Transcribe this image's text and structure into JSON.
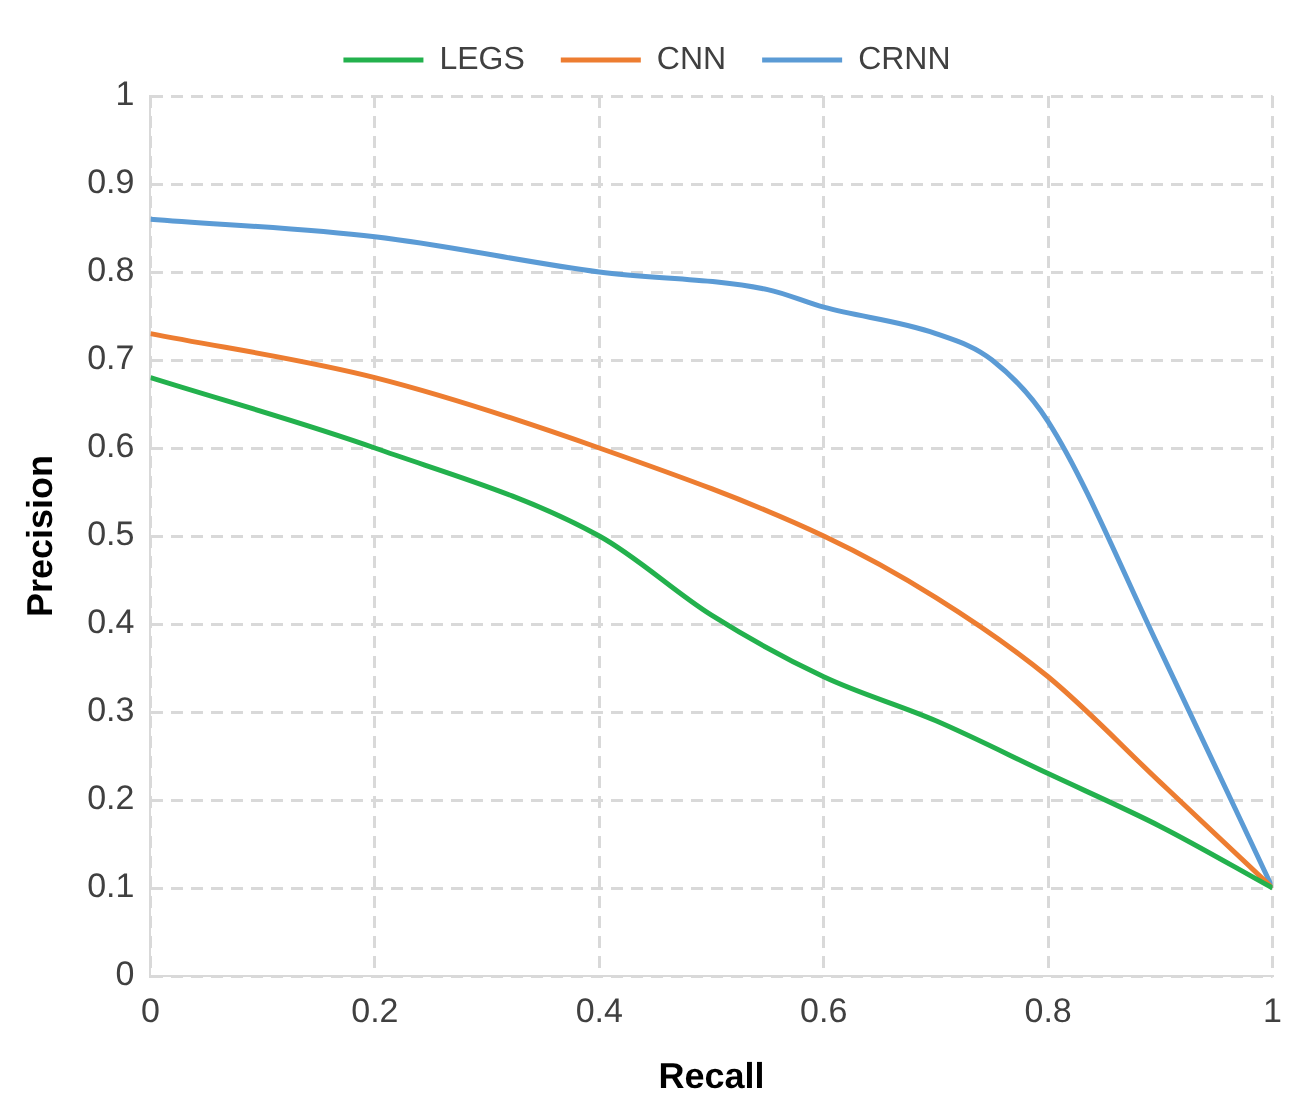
{
  "chart_data": {
    "type": "line",
    "xlabel": "Recall",
    "ylabel": "Precision",
    "xlim": [
      0,
      1
    ],
    "ylim": [
      0,
      1
    ],
    "xticks": [
      0,
      0.2,
      0.4,
      0.6,
      0.8,
      1
    ],
    "yticks": [
      0,
      0.1,
      0.2,
      0.3,
      0.4,
      0.5,
      0.6,
      0.7,
      0.8,
      0.9,
      1
    ],
    "grid": true,
    "legend": "top",
    "marker": "none",
    "line_style": "solid",
    "series": [
      {
        "name": "LEGS",
        "color": "#23b14d",
        "x": [
          0,
          0.2,
          0.4,
          0.5,
          0.6,
          0.7,
          0.8,
          0.9,
          1
        ],
        "values": [
          0.68,
          0.6,
          0.5,
          0.41,
          0.34,
          0.29,
          0.23,
          0.17,
          0.1
        ]
      },
      {
        "name": "CNN",
        "color": "#ed7d31",
        "x": [
          0,
          0.2,
          0.4,
          0.6,
          0.7,
          0.8,
          0.9,
          1
        ],
        "values": [
          0.73,
          0.68,
          0.6,
          0.5,
          0.43,
          0.34,
          0.22,
          0.1
        ]
      },
      {
        "name": "CRNN",
        "color": "#5b9bd5",
        "x": [
          0,
          0.2,
          0.4,
          0.55,
          0.6,
          0.7,
          0.75,
          0.8,
          0.9,
          1
        ],
        "values": [
          0.86,
          0.84,
          0.8,
          0.78,
          0.76,
          0.73,
          0.7,
          0.63,
          0.37,
          0.1
        ]
      }
    ]
  }
}
